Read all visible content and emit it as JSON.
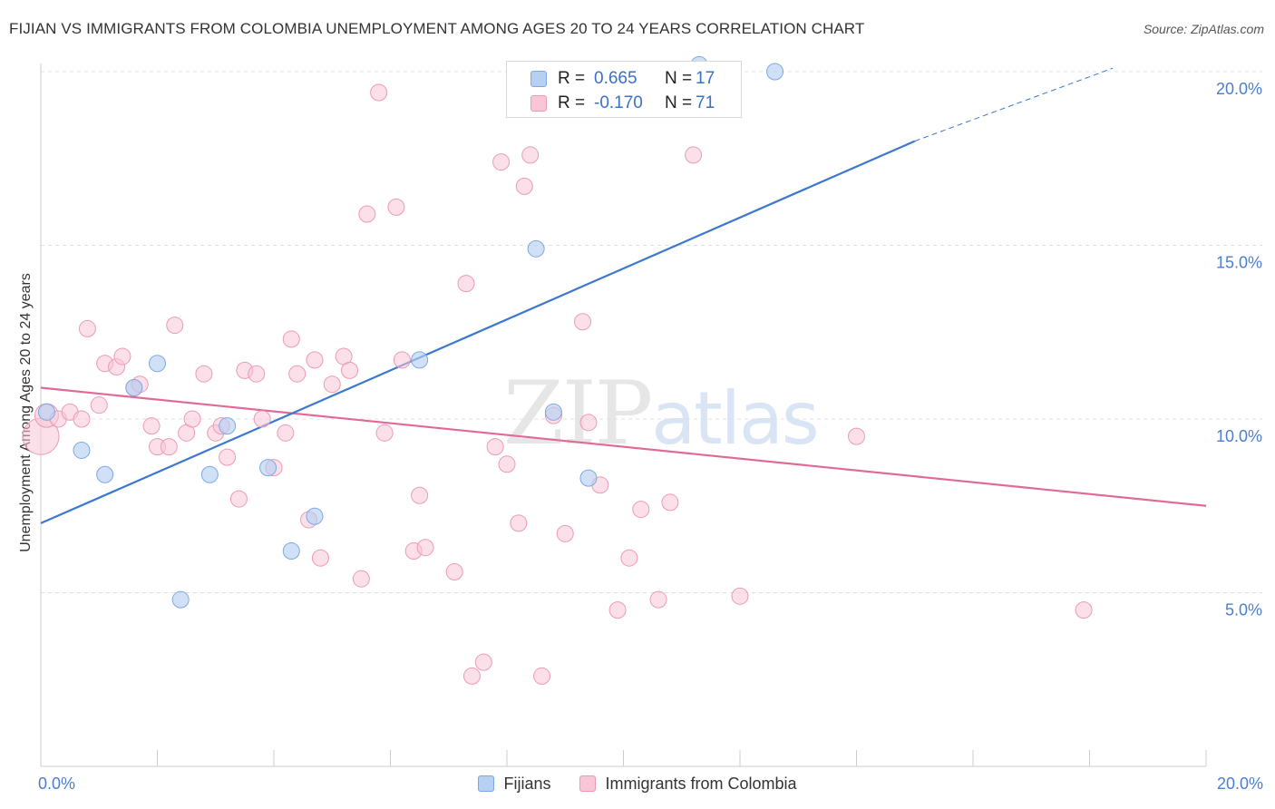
{
  "title": "FIJIAN VS IMMIGRANTS FROM COLOMBIA UNEMPLOYMENT AMONG AGES 20 TO 24 YEARS CORRELATION CHART",
  "source": "Source: ZipAtlas.com",
  "watermark": {
    "zip": "ZIP",
    "atlas": "atlas"
  },
  "legend": {
    "r_label": "R =",
    "n_label": "N =",
    "series": [
      {
        "r": "0.665",
        "n": "17"
      },
      {
        "r": "-0.170",
        "n": "71"
      }
    ]
  },
  "colors": {
    "fijians_fill": "#b6d0f3",
    "fijians_stroke": "#7ea8e3",
    "fijians_line": "#3b78d0",
    "colombia_fill": "#f8c6d7",
    "colombia_stroke": "#ec9ab7",
    "colombia_line": "#e06a97",
    "tick_text": "#4a7fcf",
    "grid": "#e0e0e0"
  },
  "chart_data": {
    "type": "scatter",
    "title": "FIJIAN VS IMMIGRANTS FROM COLOMBIA UNEMPLOYMENT AMONG AGES 20 TO 24 YEARS CORRELATION CHART",
    "xlabel": "",
    "ylabel": "Unemployment Among Ages 20 to 24 years",
    "xlim": [
      0,
      20
    ],
    "ylim": [
      0,
      20.5
    ],
    "x_tick_labels": [
      "0.0%",
      "20.0%"
    ],
    "y_ticks": [
      5,
      10,
      15,
      20
    ],
    "y_tick_labels": [
      "5.0%",
      "10.0%",
      "15.0%",
      "20.0%"
    ],
    "grid": true,
    "legend_position": "top-center",
    "series": [
      {
        "name": "Fijians",
        "points": [
          [
            0.1,
            10.2
          ],
          [
            0.7,
            9.1
          ],
          [
            1.1,
            8.4
          ],
          [
            1.6,
            10.9
          ],
          [
            2.0,
            11.6
          ],
          [
            2.4,
            4.8
          ],
          [
            2.9,
            8.4
          ],
          [
            3.2,
            9.8
          ],
          [
            3.9,
            8.6
          ],
          [
            4.3,
            6.2
          ],
          [
            4.7,
            7.2
          ],
          [
            6.5,
            11.7
          ],
          [
            8.5,
            14.9
          ],
          [
            8.8,
            10.2
          ],
          [
            9.4,
            8.3
          ],
          [
            11.3,
            20.2
          ],
          [
            12.6,
            20.0
          ]
        ],
        "trend": {
          "x": [
            0,
            15
          ],
          "y": [
            7.0,
            18.0
          ],
          "dashed_to": [
            18.4,
            20.1
          ]
        }
      },
      {
        "name": "Immigrants from Colombia",
        "points": [
          [
            0.0,
            9.5
          ],
          [
            0.1,
            10.1
          ],
          [
            0.3,
            10.0
          ],
          [
            0.5,
            10.2
          ],
          [
            0.7,
            10.0
          ],
          [
            0.8,
            12.6
          ],
          [
            1.0,
            10.4
          ],
          [
            1.1,
            11.6
          ],
          [
            1.3,
            11.5
          ],
          [
            1.4,
            11.8
          ],
          [
            1.6,
            10.9
          ],
          [
            1.7,
            11.0
          ],
          [
            1.9,
            9.8
          ],
          [
            2.0,
            9.2
          ],
          [
            2.2,
            9.2
          ],
          [
            2.3,
            12.7
          ],
          [
            2.5,
            9.6
          ],
          [
            2.6,
            10.0
          ],
          [
            2.8,
            11.3
          ],
          [
            3.0,
            9.6
          ],
          [
            3.1,
            9.8
          ],
          [
            3.2,
            8.9
          ],
          [
            3.4,
            7.7
          ],
          [
            3.5,
            11.4
          ],
          [
            3.7,
            11.3
          ],
          [
            3.8,
            10.0
          ],
          [
            4.0,
            8.6
          ],
          [
            4.2,
            9.6
          ],
          [
            4.3,
            12.3
          ],
          [
            4.4,
            11.3
          ],
          [
            4.6,
            7.1
          ],
          [
            4.7,
            11.7
          ],
          [
            4.8,
            6.0
          ],
          [
            5.0,
            11.0
          ],
          [
            5.2,
            11.8
          ],
          [
            5.3,
            11.4
          ],
          [
            5.5,
            5.4
          ],
          [
            5.6,
            15.9
          ],
          [
            5.8,
            19.4
          ],
          [
            5.9,
            9.6
          ],
          [
            6.1,
            16.1
          ],
          [
            6.2,
            11.7
          ],
          [
            6.4,
            6.2
          ],
          [
            6.5,
            7.8
          ],
          [
            6.6,
            6.3
          ],
          [
            7.1,
            5.6
          ],
          [
            7.3,
            13.9
          ],
          [
            7.4,
            2.6
          ],
          [
            7.6,
            3.0
          ],
          [
            7.8,
            9.2
          ],
          [
            7.9,
            17.4
          ],
          [
            8.0,
            8.7
          ],
          [
            8.2,
            7.0
          ],
          [
            8.3,
            16.7
          ],
          [
            8.4,
            17.6
          ],
          [
            8.6,
            2.6
          ],
          [
            8.8,
            10.1
          ],
          [
            9.0,
            6.7
          ],
          [
            9.3,
            12.8
          ],
          [
            9.4,
            9.9
          ],
          [
            9.6,
            8.1
          ],
          [
            9.9,
            4.5
          ],
          [
            10.1,
            6.0
          ],
          [
            10.3,
            7.4
          ],
          [
            10.6,
            4.8
          ],
          [
            10.8,
            7.6
          ],
          [
            11.0,
            19.5
          ],
          [
            11.2,
            17.6
          ],
          [
            12.0,
            4.9
          ],
          [
            14.0,
            9.5
          ],
          [
            17.9,
            4.5
          ]
        ],
        "trend": {
          "x": [
            0,
            20
          ],
          "y": [
            10.9,
            7.5
          ]
        }
      }
    ]
  }
}
